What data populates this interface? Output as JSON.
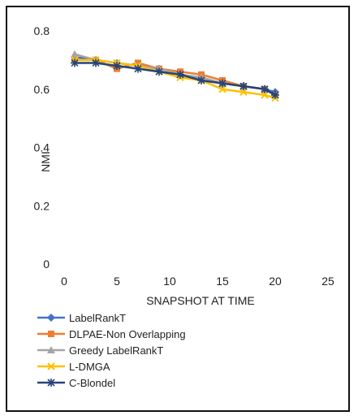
{
  "chart_data": {
    "type": "line",
    "title": "",
    "xlabel": "SNAPSHOT AT TIME",
    "ylabel": "NMI",
    "xlim": [
      0,
      25
    ],
    "ylim": [
      0,
      0.8
    ],
    "x_ticks": [
      "0",
      "5",
      "10",
      "15",
      "20",
      "25"
    ],
    "y_ticks": [
      "0",
      "0.2",
      "0.4",
      "0.6",
      "0.8"
    ],
    "grid": false,
    "legend_position": "bottom",
    "x": [
      1,
      3,
      5,
      7,
      9,
      11,
      13,
      15,
      17,
      19,
      20
    ],
    "series": [
      {
        "name": "LabelRankT",
        "color": "#4472C4",
        "marker": "diamond",
        "values": [
          0.71,
          0.7,
          0.69,
          0.68,
          0.67,
          0.65,
          0.64,
          0.62,
          0.61,
          0.6,
          0.59
        ]
      },
      {
        "name": "DLPAE-Non Overlapping",
        "color": "#ED7D31",
        "marker": "square",
        "values": [
          0.7,
          0.7,
          0.67,
          0.69,
          0.67,
          0.66,
          0.65,
          0.63,
          0.61,
          0.6,
          0.58
        ]
      },
      {
        "name": "Greedy LabelRankT",
        "color": "#A5A5A5",
        "marker": "triangle",
        "values": [
          0.72,
          0.7,
          0.69,
          0.68,
          0.67,
          0.65,
          0.64,
          0.62,
          0.61,
          0.6,
          0.58
        ]
      },
      {
        "name": "L-DMGA",
        "color": "#FFC000",
        "marker": "x",
        "values": [
          0.7,
          0.7,
          0.69,
          0.68,
          0.66,
          0.64,
          0.63,
          0.6,
          0.59,
          0.58,
          0.57
        ]
      },
      {
        "name": "C-Blondel",
        "color": "#264478",
        "marker": "star",
        "values": [
          0.69,
          0.69,
          0.68,
          0.67,
          0.66,
          0.65,
          0.63,
          0.62,
          0.61,
          0.6,
          0.58
        ]
      }
    ]
  }
}
